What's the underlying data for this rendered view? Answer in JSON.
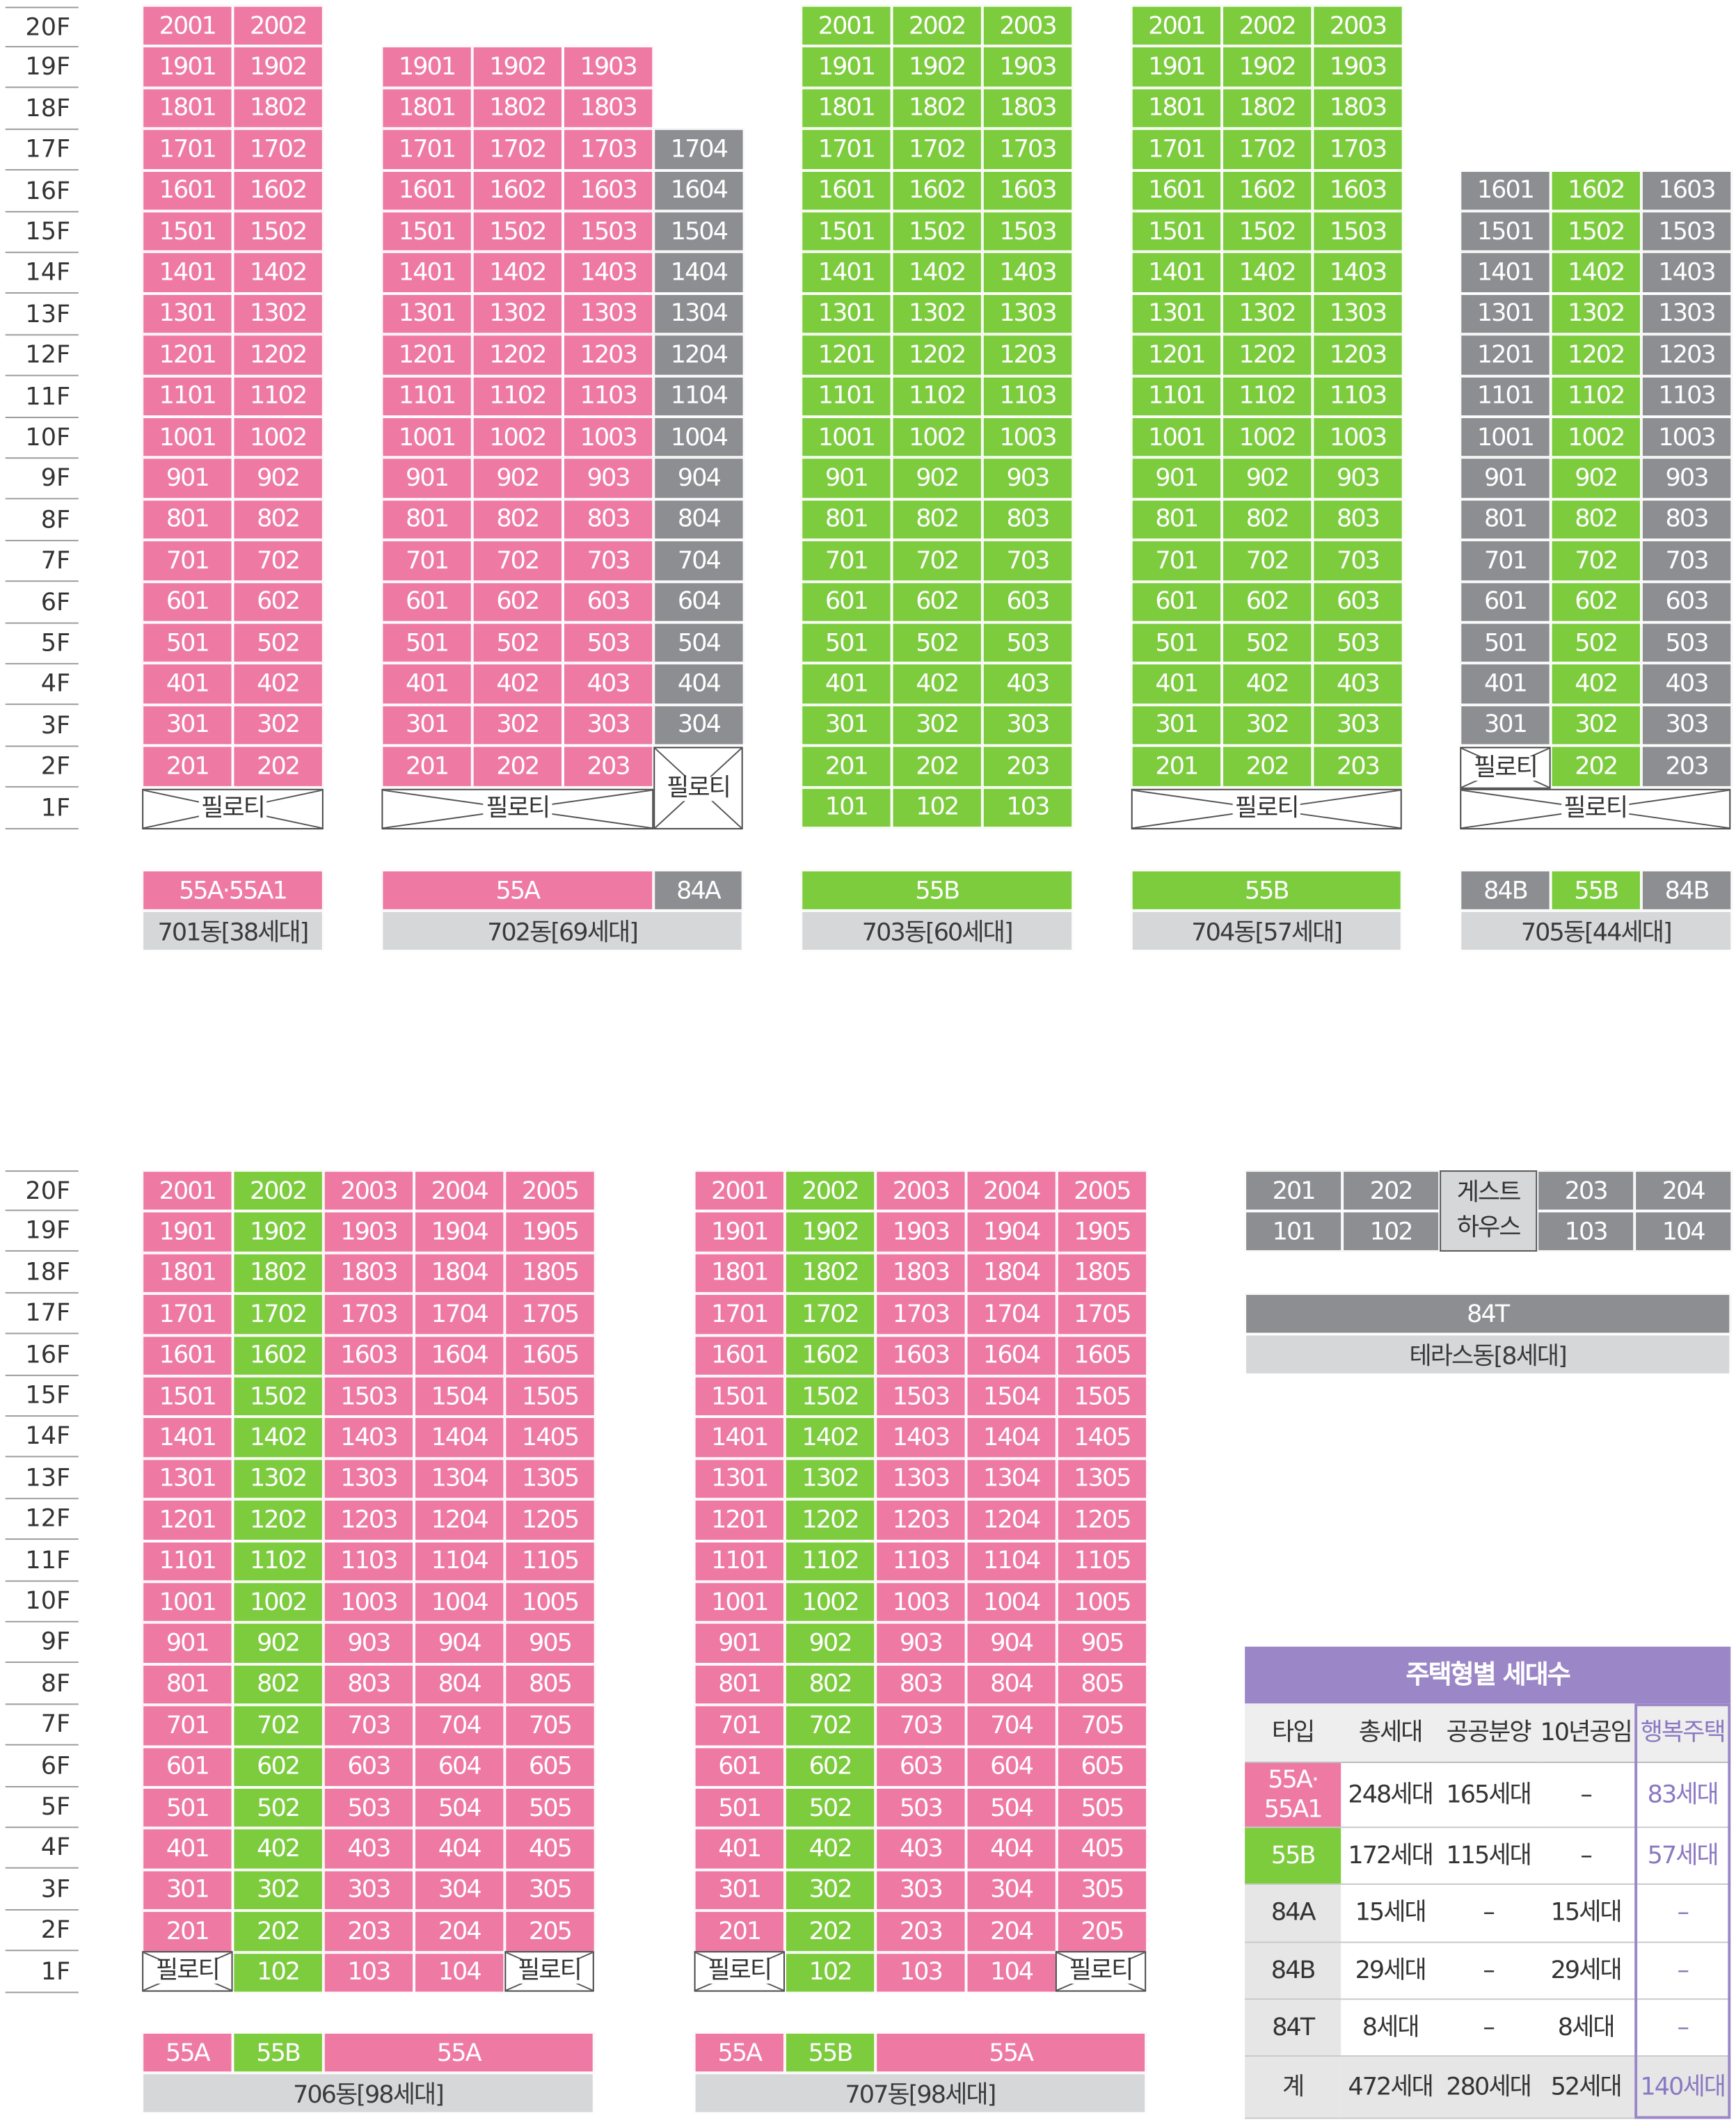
{
  "floors_top": [
    "20F",
    "19F",
    "18F",
    "17F",
    "16F",
    "15F",
    "14F",
    "13F",
    "12F",
    "11F",
    "10F",
    "9F",
    "8F",
    "7F",
    "6F",
    "5F",
    "4F",
    "3F",
    "2F",
    "1F"
  ],
  "floors_bottom": [
    "20F",
    "19F",
    "18F",
    "17F",
    "16F",
    "15F",
    "14F",
    "13F",
    "12F",
    "11F",
    "10F",
    "9F",
    "8F",
    "7F",
    "6F",
    "5F",
    "4F",
    "3F",
    "2F",
    "1F"
  ],
  "pilotis_label": "필로티",
  "colors": {
    "55A": "#ee7aa4",
    "55B": "#7ccc3e",
    "84": "#8d8e91",
    "label_bg": "#d6d7d8",
    "header_purple": "#9b86c7",
    "happy_purple": "#8a78c2"
  },
  "buildings": {
    "b701": {
      "type_labels": [
        "55A·55A1"
      ],
      "name": "701동[38세대]",
      "columns": [
        {
          "color": "pink",
          "units": [
            "2001",
            "1901",
            "1801",
            "1701",
            "1601",
            "1501",
            "1401",
            "1301",
            "1201",
            "1101",
            "1001",
            "901",
            "801",
            "701",
            "601",
            "501",
            "401",
            "301",
            "201"
          ]
        },
        {
          "color": "pink",
          "units": [
            "2002",
            "1902",
            "1802",
            "1702",
            "1602",
            "1502",
            "1402",
            "1302",
            "1202",
            "1102",
            "1002",
            "902",
            "802",
            "702",
            "602",
            "502",
            "402",
            "302",
            "202"
          ]
        }
      ]
    },
    "b702": {
      "type_labels": [
        "55A",
        "84A"
      ],
      "name": "702동[69세대]",
      "columns": [
        {
          "color": "pink",
          "units": [
            "1901",
            "1801",
            "1701",
            "1601",
            "1501",
            "1401",
            "1301",
            "1201",
            "1101",
            "1001",
            "901",
            "801",
            "701",
            "601",
            "501",
            "401",
            "301",
            "201"
          ]
        },
        {
          "color": "pink",
          "units": [
            "1902",
            "1802",
            "1702",
            "1602",
            "1502",
            "1402",
            "1302",
            "1202",
            "1102",
            "1002",
            "902",
            "802",
            "702",
            "602",
            "502",
            "402",
            "302",
            "202"
          ]
        },
        {
          "color": "pink",
          "units": [
            "1903",
            "1803",
            "1703",
            "1603",
            "1503",
            "1403",
            "1303",
            "1203",
            "1103",
            "1003",
            "903",
            "803",
            "703",
            "603",
            "503",
            "403",
            "303",
            "203"
          ]
        },
        {
          "color": "gray",
          "units": [
            "1704",
            "1604",
            "1504",
            "1404",
            "1304",
            "1204",
            "1104",
            "1004",
            "904",
            "804",
            "704",
            "604",
            "504",
            "404",
            "304"
          ]
        }
      ]
    },
    "b703": {
      "type_labels": [
        "55B"
      ],
      "name": "703동[60세대]",
      "columns": [
        {
          "color": "green",
          "units": [
            "2001",
            "1901",
            "1801",
            "1701",
            "1601",
            "1501",
            "1401",
            "1301",
            "1201",
            "1101",
            "1001",
            "901",
            "801",
            "701",
            "601",
            "501",
            "401",
            "301",
            "201",
            "101"
          ]
        },
        {
          "color": "green",
          "units": [
            "2002",
            "1902",
            "1802",
            "1702",
            "1602",
            "1502",
            "1402",
            "1302",
            "1202",
            "1102",
            "1002",
            "902",
            "802",
            "702",
            "602",
            "502",
            "402",
            "302",
            "202",
            "102"
          ]
        },
        {
          "color": "green",
          "units": [
            "2003",
            "1903",
            "1803",
            "1703",
            "1603",
            "1503",
            "1403",
            "1303",
            "1203",
            "1103",
            "1003",
            "903",
            "803",
            "703",
            "603",
            "503",
            "403",
            "303",
            "203",
            "103"
          ]
        }
      ]
    },
    "b704": {
      "type_labels": [
        "55B"
      ],
      "name": "704동[57세대]",
      "columns": [
        {
          "color": "green",
          "units": [
            "2001",
            "1901",
            "1801",
            "1701",
            "1601",
            "1501",
            "1401",
            "1301",
            "1201",
            "1101",
            "1001",
            "901",
            "801",
            "701",
            "601",
            "501",
            "401",
            "301",
            "201"
          ]
        },
        {
          "color": "green",
          "units": [
            "2002",
            "1902",
            "1802",
            "1702",
            "1602",
            "1502",
            "1402",
            "1302",
            "1202",
            "1102",
            "1002",
            "902",
            "802",
            "702",
            "602",
            "502",
            "402",
            "302",
            "202"
          ]
        },
        {
          "color": "green",
          "units": [
            "2003",
            "1903",
            "1803",
            "1703",
            "1603",
            "1503",
            "1403",
            "1303",
            "1203",
            "1103",
            "1003",
            "903",
            "803",
            "703",
            "603",
            "503",
            "403",
            "303",
            "203"
          ]
        }
      ]
    },
    "b705": {
      "type_labels": [
        "84B",
        "55B",
        "84B"
      ],
      "name": "705동[44세대]",
      "columns": [
        {
          "color": "gray",
          "units": [
            "1601",
            "1501",
            "1401",
            "1301",
            "1201",
            "1101",
            "1001",
            "901",
            "801",
            "701",
            "601",
            "501",
            "401",
            "301"
          ]
        },
        {
          "color": "green",
          "units": [
            "1602",
            "1502",
            "1402",
            "1302",
            "1202",
            "1102",
            "1002",
            "902",
            "802",
            "702",
            "602",
            "502",
            "402",
            "302",
            "202"
          ]
        },
        {
          "color": "gray",
          "units": [
            "1603",
            "1503",
            "1403",
            "1303",
            "1203",
            "1103",
            "1003",
            "903",
            "803",
            "703",
            "603",
            "503",
            "403",
            "303",
            "203"
          ]
        }
      ]
    },
    "b706": {
      "type_labels": [
        "55A",
        "55B",
        "55A"
      ],
      "name": "706동[98세대]",
      "columns": [
        {
          "color": "pink",
          "units": [
            "2001",
            "1901",
            "1801",
            "1701",
            "1601",
            "1501",
            "1401",
            "1301",
            "1201",
            "1101",
            "1001",
            "901",
            "801",
            "701",
            "601",
            "501",
            "401",
            "301",
            "201"
          ]
        },
        {
          "color": "green",
          "units": [
            "2002",
            "1902",
            "1802",
            "1702",
            "1602",
            "1502",
            "1402",
            "1302",
            "1202",
            "1102",
            "1002",
            "902",
            "802",
            "702",
            "602",
            "502",
            "402",
            "302",
            "202",
            "102"
          ]
        },
        {
          "color": "pink",
          "units": [
            "2003",
            "1903",
            "1803",
            "1703",
            "1603",
            "1503",
            "1403",
            "1303",
            "1203",
            "1103",
            "1003",
            "903",
            "803",
            "703",
            "603",
            "503",
            "403",
            "303",
            "203",
            "103"
          ]
        },
        {
          "color": "pink",
          "units": [
            "2004",
            "1904",
            "1804",
            "1704",
            "1604",
            "1504",
            "1404",
            "1304",
            "1204",
            "1104",
            "1004",
            "904",
            "804",
            "704",
            "604",
            "504",
            "404",
            "304",
            "204",
            "104"
          ]
        },
        {
          "color": "pink",
          "units": [
            "2005",
            "1905",
            "1805",
            "1705",
            "1605",
            "1505",
            "1405",
            "1305",
            "1205",
            "1105",
            "1005",
            "905",
            "805",
            "705",
            "605",
            "505",
            "405",
            "305",
            "205"
          ]
        }
      ]
    },
    "b707": {
      "type_labels": [
        "55A",
        "55B",
        "55A"
      ],
      "name": "707동[98세대]",
      "columns": [
        {
          "color": "pink",
          "units": [
            "2001",
            "1901",
            "1801",
            "1701",
            "1601",
            "1501",
            "1401",
            "1301",
            "1201",
            "1101",
            "1001",
            "901",
            "801",
            "701",
            "601",
            "501",
            "401",
            "301",
            "201"
          ]
        },
        {
          "color": "green",
          "units": [
            "2002",
            "1902",
            "1802",
            "1702",
            "1602",
            "1502",
            "1402",
            "1302",
            "1202",
            "1102",
            "1002",
            "902",
            "802",
            "702",
            "602",
            "502",
            "402",
            "302",
            "202",
            "102"
          ]
        },
        {
          "color": "pink",
          "units": [
            "2003",
            "1903",
            "1803",
            "1703",
            "1603",
            "1503",
            "1403",
            "1303",
            "1203",
            "1103",
            "1003",
            "903",
            "803",
            "703",
            "603",
            "503",
            "403",
            "303",
            "203",
            "103"
          ]
        },
        {
          "color": "pink",
          "units": [
            "2004",
            "1904",
            "1804",
            "1704",
            "1604",
            "1504",
            "1404",
            "1304",
            "1204",
            "1104",
            "1004",
            "904",
            "804",
            "704",
            "604",
            "504",
            "404",
            "304",
            "204",
            "104"
          ]
        },
        {
          "color": "pink",
          "units": [
            "2005",
            "1905",
            "1805",
            "1705",
            "1605",
            "1505",
            "1405",
            "1305",
            "1205",
            "1105",
            "1005",
            "905",
            "805",
            "705",
            "605",
            "505",
            "405",
            "305",
            "205"
          ]
        }
      ]
    },
    "terrace": {
      "row2": [
        "201",
        "202",
        "203",
        "204"
      ],
      "row1": [
        "101",
        "102",
        "103",
        "104"
      ],
      "guest_house": [
        "게스트",
        "하우스"
      ],
      "type_label": "84T",
      "name": "테라스동[8세대]"
    }
  },
  "summary_table": {
    "title": "주택형별 세대수",
    "headers": [
      "타입",
      "총세대",
      "공공분양",
      "10년공임",
      "행복주택"
    ],
    "rows": [
      {
        "type": "55A·\n55A1",
        "total": "248세대",
        "public": "165세대",
        "rent10": "–",
        "happy": "83세대"
      },
      {
        "type": "55B",
        "total": "172세대",
        "public": "115세대",
        "rent10": "–",
        "happy": "57세대"
      },
      {
        "type": "84A",
        "total": "15세대",
        "public": "–",
        "rent10": "15세대",
        "happy": "–"
      },
      {
        "type": "84B",
        "total": "29세대",
        "public": "–",
        "rent10": "29세대",
        "happy": "–"
      },
      {
        "type": "84T",
        "total": "8세대",
        "public": "–",
        "rent10": "8세대",
        "happy": "–"
      },
      {
        "type": "계",
        "total": "472세대",
        "public": "280세대",
        "rent10": "52세대",
        "happy": "140세대"
      }
    ]
  }
}
